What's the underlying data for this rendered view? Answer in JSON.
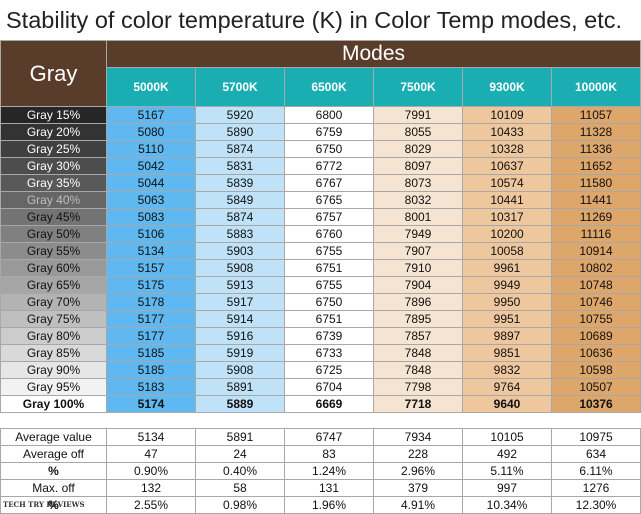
{
  "title": "Stability of color temperature (K) in Color Temp modes, etc.",
  "header": {
    "gray": "Gray",
    "modes": "Modes"
  },
  "chart_data": {
    "type": "table",
    "columns": [
      "5000K",
      "5700K",
      "6500K",
      "7500K",
      "9300K",
      "10000K"
    ],
    "column_colors": [
      "#5fb8ef",
      "#bfe2f8",
      "#ffffff",
      "#f5e4d2",
      "#eec79e",
      "#dda66a"
    ],
    "rows": [
      {
        "label": "Gray 15%",
        "values": [
          "5167",
          "5920",
          "6800",
          "7991",
          "10109",
          "11057"
        ],
        "swatch": "#262626",
        "text": "#ffffff"
      },
      {
        "label": "Gray 20%",
        "values": [
          "5080",
          "5890",
          "6759",
          "8055",
          "10433",
          "11328"
        ],
        "swatch": "#333333",
        "text": "#ffffff"
      },
      {
        "label": "Gray 25%",
        "values": [
          "5110",
          "5874",
          "6750",
          "8029",
          "10328",
          "11336"
        ],
        "swatch": "#404040",
        "text": "#ffffff"
      },
      {
        "label": "Gray 30%",
        "values": [
          "5042",
          "5831",
          "6772",
          "8097",
          "10637",
          "11652"
        ],
        "swatch": "#4d4d4d",
        "text": "#ffffff"
      },
      {
        "label": "Gray 35%",
        "values": [
          "5044",
          "5839",
          "6767",
          "8073",
          "10574",
          "11580"
        ],
        "swatch": "#595959",
        "text": "#ffffff"
      },
      {
        "label": "Gray 40%",
        "values": [
          "5063",
          "5849",
          "6765",
          "8032",
          "10441",
          "11441"
        ],
        "swatch": "#666666",
        "text": "#bdbdbd"
      },
      {
        "label": "Gray 45%",
        "values": [
          "5083",
          "5874",
          "6757",
          "8001",
          "10317",
          "11269"
        ],
        "swatch": "#737373",
        "text": "#111111"
      },
      {
        "label": "Gray 50%",
        "values": [
          "5106",
          "5883",
          "6760",
          "7949",
          "10200",
          "11116"
        ],
        "swatch": "#808080",
        "text": "#111111"
      },
      {
        "label": "Gray 55%",
        "values": [
          "5134",
          "5903",
          "6755",
          "7907",
          "10058",
          "10914"
        ],
        "swatch": "#8c8c8c",
        "text": "#111111"
      },
      {
        "label": "Gray 60%",
        "values": [
          "5157",
          "5908",
          "6751",
          "7910",
          "9961",
          "10802"
        ],
        "swatch": "#999999",
        "text": "#111111"
      },
      {
        "label": "Gray 65%",
        "values": [
          "5175",
          "5913",
          "6755",
          "7904",
          "9949",
          "10748"
        ],
        "swatch": "#a6a6a6",
        "text": "#111111"
      },
      {
        "label": "Gray 70%",
        "values": [
          "5178",
          "5917",
          "6750",
          "7896",
          "9950",
          "10746"
        ],
        "swatch": "#b3b3b3",
        "text": "#111111"
      },
      {
        "label": "Gray 75%",
        "values": [
          "5177",
          "5914",
          "6751",
          "7895",
          "9951",
          "10755"
        ],
        "swatch": "#bfbfbf",
        "text": "#111111"
      },
      {
        "label": "Gray 80%",
        "values": [
          "5177",
          "5916",
          "6739",
          "7857",
          "9897",
          "10689"
        ],
        "swatch": "#cccccc",
        "text": "#111111"
      },
      {
        "label": "Gray 85%",
        "values": [
          "5185",
          "5919",
          "6733",
          "7848",
          "9851",
          "10636"
        ],
        "swatch": "#d9d9d9",
        "text": "#111111"
      },
      {
        "label": "Gray 90%",
        "values": [
          "5185",
          "5908",
          "6725",
          "7848",
          "9832",
          "10598"
        ],
        "swatch": "#e6e6e6",
        "text": "#111111"
      },
      {
        "label": "Gray 95%",
        "values": [
          "5183",
          "5891",
          "6704",
          "7798",
          "9764",
          "10507"
        ],
        "swatch": "#f2f2f2",
        "text": "#111111"
      },
      {
        "label": "Gray 100%",
        "values": [
          "5174",
          "5889",
          "6669",
          "7718",
          "9640",
          "10376"
        ],
        "swatch": "#ffffff",
        "text": "#111111",
        "bold": true
      }
    ],
    "stats": [
      {
        "label": "Average value",
        "values": [
          "5134",
          "5891",
          "6747",
          "7934",
          "10105",
          "10975"
        ]
      },
      {
        "label": "Average off",
        "values": [
          "47",
          "24",
          "83",
          "228",
          "492",
          "634"
        ]
      },
      {
        "label": "%",
        "values": [
          "0.90%",
          "0.40%",
          "1.24%",
          "2.96%",
          "5.11%",
          "6.11%"
        ],
        "bold_label": true
      },
      {
        "label": "Max. off",
        "values": [
          "132",
          "58",
          "131",
          "379",
          "997",
          "1276"
        ]
      },
      {
        "label": "%",
        "values": [
          "2.55%",
          "0.98%",
          "1.96%",
          "4.91%",
          "10.34%",
          "12.30%"
        ],
        "bold_label": true
      }
    ]
  },
  "watermark": "TECH TRY REVIEWS"
}
